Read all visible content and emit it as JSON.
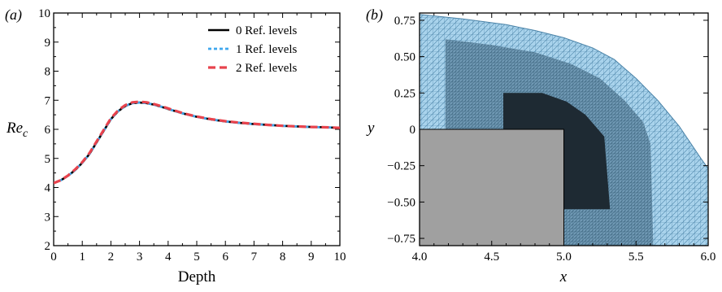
{
  "figure": {
    "panel_a_label": "(a)",
    "panel_b_label": "(b)"
  },
  "chart_data": [
    {
      "type": "line",
      "panel": "(a)",
      "title": "",
      "xlabel": "Depth",
      "ylabel": "Re",
      "ylabel_sub": "c",
      "xlim": [
        0,
        10
      ],
      "ylim": [
        2,
        10
      ],
      "xticks": [
        "0",
        "1",
        "2",
        "3",
        "4",
        "5",
        "6",
        "7",
        "8",
        "9",
        "10"
      ],
      "yticks": [
        "2",
        "3",
        "4",
        "5",
        "6",
        "7",
        "8",
        "9",
        "10"
      ],
      "grid": false,
      "legend_position": "top-right",
      "x": [
        0,
        0.25,
        0.5,
        0.75,
        1.0,
        1.25,
        1.5,
        1.75,
        2.0,
        2.25,
        2.5,
        2.75,
        3.0,
        3.25,
        3.5,
        3.75,
        4.0,
        4.5,
        5.0,
        5.5,
        6.0,
        6.5,
        7.0,
        7.5,
        8.0,
        8.5,
        9.0,
        9.5,
        10.0
      ],
      "series": [
        {
          "name": "0 Ref. levels",
          "color": "#000000",
          "dash": "solid",
          "values": [
            4.15,
            4.25,
            4.4,
            4.6,
            4.85,
            5.15,
            5.55,
            5.95,
            6.35,
            6.62,
            6.8,
            6.9,
            6.92,
            6.9,
            6.85,
            6.78,
            6.7,
            6.55,
            6.43,
            6.34,
            6.27,
            6.22,
            6.18,
            6.15,
            6.12,
            6.1,
            6.08,
            6.07,
            6.05
          ]
        },
        {
          "name": "1 Ref. levels",
          "color": "#3fa7ee",
          "dash": "dotted",
          "values": [
            4.15,
            4.25,
            4.4,
            4.6,
            4.85,
            5.15,
            5.55,
            5.95,
            6.35,
            6.62,
            6.8,
            6.9,
            6.92,
            6.9,
            6.85,
            6.78,
            6.7,
            6.55,
            6.43,
            6.34,
            6.27,
            6.22,
            6.18,
            6.15,
            6.12,
            6.1,
            6.08,
            6.07,
            6.05
          ]
        },
        {
          "name": "2 Ref. levels",
          "color": "#e8434d",
          "dash": "dashed",
          "values": [
            4.15,
            4.25,
            4.41,
            4.62,
            4.87,
            5.18,
            5.58,
            5.98,
            6.38,
            6.65,
            6.83,
            6.93,
            6.95,
            6.93,
            6.87,
            6.8,
            6.72,
            6.56,
            6.44,
            6.35,
            6.28,
            6.23,
            6.19,
            6.15,
            6.12,
            6.1,
            6.08,
            6.07,
            6.05
          ]
        }
      ]
    },
    {
      "type": "mesh",
      "panel": "(b)",
      "title": "",
      "xlabel": "x",
      "ylabel": "y",
      "xlim": [
        4.0,
        6.0
      ],
      "ylim": [
        -0.8,
        0.8
      ],
      "xticks": [
        "4.0",
        "4.5",
        "5.0",
        "5.5",
        "6.0"
      ],
      "yticks": [
        "0.75",
        "0.50",
        "0.25",
        "0",
        "−0.25",
        "−0.50",
        "−0.75"
      ],
      "boundary": [
        [
          4.0,
          0.79
        ],
        [
          4.3,
          0.76
        ],
        [
          4.6,
          0.72
        ],
        [
          4.8,
          0.68
        ],
        [
          5.0,
          0.63
        ],
        [
          5.2,
          0.56
        ],
        [
          5.35,
          0.48
        ],
        [
          5.5,
          0.35
        ],
        [
          5.65,
          0.2
        ],
        [
          5.8,
          0.02
        ],
        [
          5.95,
          -0.2
        ],
        [
          6.0,
          -0.27
        ]
      ],
      "body_corner": [
        5.0,
        0.0
      ],
      "colors": {
        "mesh_fill": "#a9d3ec",
        "mesh_line": "#4a83a8",
        "refine_fill": "#5f8aa6",
        "dense_fill": "#1e2a33",
        "body_fill": "#a0a0a0"
      }
    }
  ]
}
